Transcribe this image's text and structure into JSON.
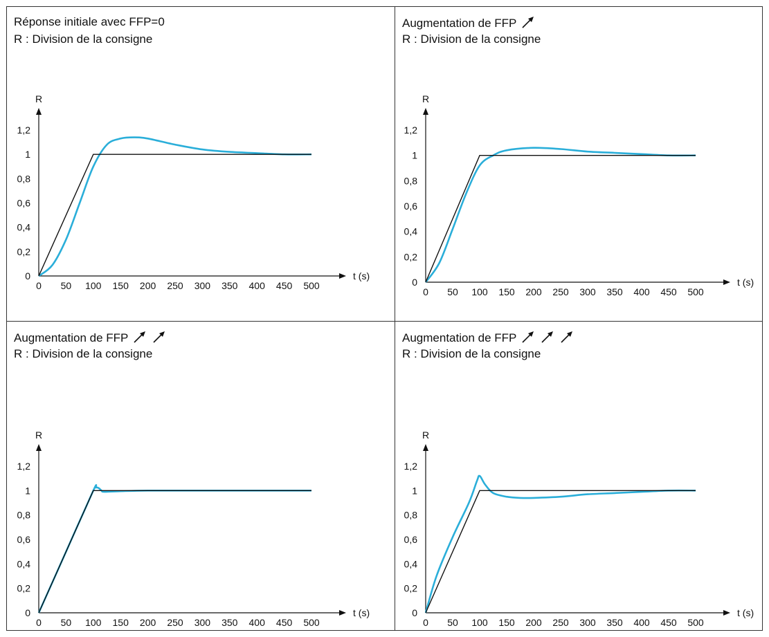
{
  "panels": [
    {
      "title": "Réponse initiale avec FFP=0",
      "arrow_count": 0,
      "subtitle": "R : Division de la consigne"
    },
    {
      "title": "Augmentation de FFP",
      "arrow_count": 1,
      "subtitle": "R : Division de la consigne"
    },
    {
      "title": "Augmentation de FFP",
      "arrow_count": 2,
      "subtitle": "R : Division de la consigne"
    },
    {
      "title": "Augmentation de FFP",
      "arrow_count": 3,
      "subtitle": "R : Division de la consigne"
    }
  ],
  "icons": {
    "increase": "arrow-up-right-icon"
  },
  "colors": {
    "response": "#2aaed9",
    "setpoint": "#111111",
    "axis": "#111111"
  },
  "chart_data": [
    {
      "type": "line",
      "ylabel": "R",
      "xlabel": "t (s)",
      "xlim": [
        0,
        500
      ],
      "ylim": [
        0,
        1.2
      ],
      "xticks": [
        0,
        50,
        100,
        150,
        200,
        250,
        300,
        350,
        400,
        450,
        500
      ],
      "yticks": [
        0,
        0.2,
        0.4,
        0.6,
        0.8,
        1,
        1.2
      ],
      "ytick_labels": [
        "0",
        "0,2",
        "0,4",
        "0,6",
        "0,8",
        "1",
        "1,2"
      ],
      "series": [
        {
          "x": [
            0,
            100,
            500
          ],
          "y": [
            0,
            1,
            1
          ]
        },
        {
          "x": [
            0,
            25,
            50,
            75,
            100,
            125,
            150,
            175,
            200,
            250,
            300,
            350,
            400,
            450,
            500
          ],
          "y": [
            0,
            0.09,
            0.3,
            0.6,
            0.9,
            1.08,
            1.13,
            1.14,
            1.13,
            1.08,
            1.04,
            1.02,
            1.01,
            1.0,
            1.0
          ]
        }
      ]
    },
    {
      "type": "line",
      "ylabel": "R",
      "xlabel": "t (s)",
      "xlim": [
        0,
        500
      ],
      "ylim": [
        0,
        1.2
      ],
      "xticks": [
        0,
        50,
        100,
        150,
        200,
        250,
        300,
        350,
        400,
        450,
        500
      ],
      "yticks": [
        0,
        0.2,
        0.4,
        0.6,
        0.8,
        1,
        1.2
      ],
      "ytick_labels": [
        "0",
        "0,2",
        "0,4",
        "0,6",
        "0,8",
        "1",
        "1,2"
      ],
      "series": [
        {
          "x": [
            0,
            100,
            500
          ],
          "y": [
            0,
            1,
            1
          ]
        },
        {
          "x": [
            0,
            25,
            50,
            75,
            100,
            125,
            150,
            200,
            250,
            300,
            350,
            400,
            450,
            500
          ],
          "y": [
            0,
            0.15,
            0.42,
            0.7,
            0.92,
            1.0,
            1.04,
            1.06,
            1.05,
            1.03,
            1.02,
            1.01,
            1.0,
            1.0
          ]
        }
      ]
    },
    {
      "type": "line",
      "ylabel": "R",
      "xlabel": "t (s)",
      "xlim": [
        0,
        500
      ],
      "ylim": [
        0,
        1.2
      ],
      "xticks": [
        0,
        50,
        100,
        150,
        200,
        250,
        300,
        350,
        400,
        450,
        500
      ],
      "yticks": [
        0,
        0.2,
        0.4,
        0.6,
        0.8,
        1,
        1.2
      ],
      "ytick_labels": [
        "0",
        "0,2",
        "0,4",
        "0,6",
        "0,8",
        "1",
        "1,2"
      ],
      "series": [
        {
          "x": [
            0,
            100,
            500
          ],
          "y": [
            0,
            1,
            1
          ]
        },
        {
          "x": [
            0,
            50,
            100,
            105,
            110,
            115,
            120,
            150,
            200,
            300,
            400,
            500
          ],
          "y": [
            0,
            0.5,
            1.0,
            1.025,
            1.02,
            1.0,
            0.99,
            0.995,
            1.0,
            1.0,
            1.0,
            1.0
          ]
        }
      ]
    },
    {
      "type": "line",
      "ylabel": "R",
      "xlabel": "t (s)",
      "xlim": [
        0,
        500
      ],
      "ylim": [
        0,
        1.2
      ],
      "xticks": [
        0,
        50,
        100,
        150,
        200,
        250,
        300,
        350,
        400,
        450,
        500
      ],
      "yticks": [
        0,
        0.2,
        0.4,
        0.6,
        0.8,
        1,
        1.2
      ],
      "ytick_labels": [
        "0",
        "0,2",
        "0,4",
        "0,6",
        "0,8",
        "1",
        "1,2"
      ],
      "series": [
        {
          "x": [
            0,
            100,
            500
          ],
          "y": [
            0,
            1,
            1
          ]
        },
        {
          "x": [
            0,
            20,
            50,
            80,
            95,
            100,
            110,
            125,
            150,
            175,
            200,
            250,
            300,
            350,
            400,
            450,
            500
          ],
          "y": [
            0,
            0.3,
            0.62,
            0.9,
            1.08,
            1.12,
            1.05,
            0.98,
            0.95,
            0.94,
            0.94,
            0.95,
            0.97,
            0.98,
            0.99,
            1.0,
            1.0
          ]
        }
      ]
    }
  ]
}
